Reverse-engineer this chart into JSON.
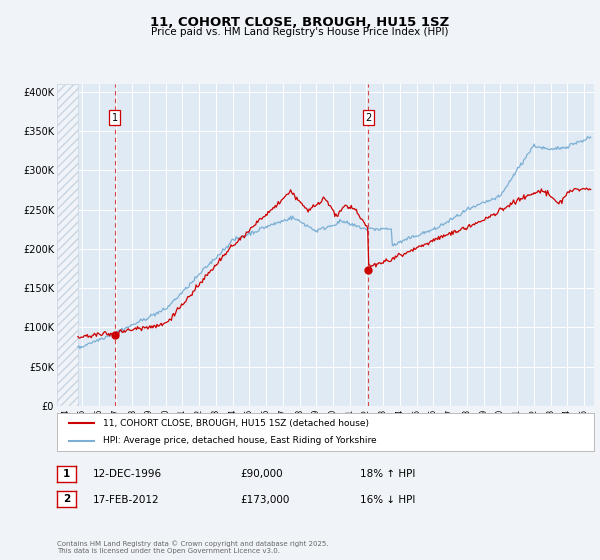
{
  "title": "11, COHORT CLOSE, BROUGH, HU15 1SZ",
  "subtitle": "Price paid vs. HM Land Registry's House Price Index (HPI)",
  "legend_line1": "11, COHORT CLOSE, BROUGH, HU15 1SZ (detached house)",
  "legend_line2": "HPI: Average price, detached house, East Riding of Yorkshire",
  "footnote": "Contains HM Land Registry data © Crown copyright and database right 2025.\nThis data is licensed under the Open Government Licence v3.0.",
  "sale1_label": "1",
  "sale1_date": "12-DEC-1996",
  "sale1_price": "£90,000",
  "sale1_hpi": "18% ↑ HPI",
  "sale2_label": "2",
  "sale2_date": "17-FEB-2012",
  "sale2_price": "£173,000",
  "sale2_hpi": "16% ↓ HPI",
  "sale1_year": 1996.95,
  "sale1_value": 90000,
  "sale2_year": 2012.12,
  "sale2_value": 173000,
  "red_color": "#cc0000",
  "blue_color": "#7bafd4",
  "background_color": "#f0f4f8",
  "plot_bg_color": "#e0eaf4",
  "grid_color": "#ffffff",
  "hatch_color": "#c8d4e0",
  "ylim": [
    0,
    410000
  ],
  "xlim_start": 1993.5,
  "xlim_end": 2025.6,
  "data_start": 1994.75,
  "yticks": [
    0,
    50000,
    100000,
    150000,
    200000,
    250000,
    300000,
    350000,
    400000
  ],
  "ytick_labels": [
    "£0",
    "£50K",
    "£100K",
    "£150K",
    "£200K",
    "£250K",
    "£300K",
    "£350K",
    "£400K"
  ]
}
